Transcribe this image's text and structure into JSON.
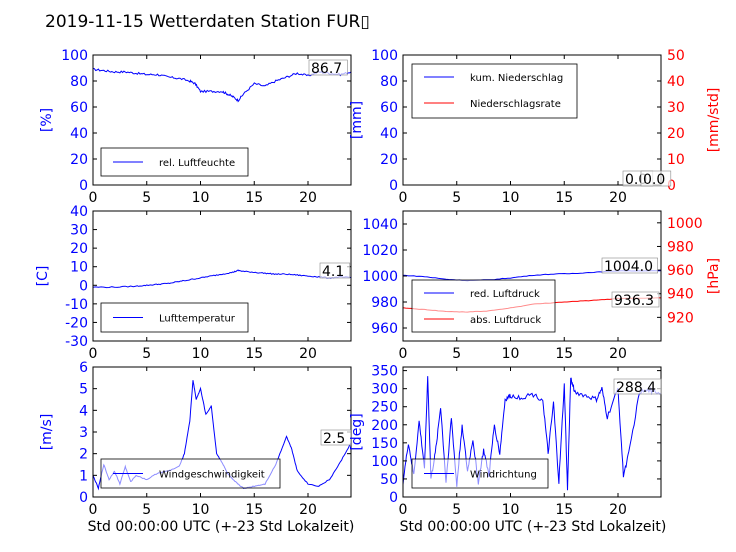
{
  "title": "2019-11-15 Wetterdaten Station FUR▯",
  "colors": {
    "left_axis": "#0000ff",
    "right_axis": "#ff0000",
    "series1": "#0000ff",
    "series2": "#ff0000"
  },
  "chart_data": [
    {
      "id": "humidity",
      "type": "line",
      "ylabel": "[%]",
      "xlim": [
        0,
        24
      ],
      "ylim": [
        0,
        100
      ],
      "xticks": [
        0,
        5,
        10,
        15,
        20
      ],
      "yticks": [
        0,
        20,
        40,
        60,
        80,
        100
      ],
      "grid": false,
      "legend": "lower-left",
      "series": [
        {
          "name": "rel. Luftfeuchte",
          "axis": "left",
          "x": [
            0,
            1,
            2,
            3,
            4,
            5,
            6,
            7,
            8,
            9,
            9.5,
            10,
            11,
            12,
            12.5,
            13,
            13.5,
            14,
            15,
            16,
            17,
            18,
            19,
            20,
            21,
            22,
            23,
            24
          ],
          "y": [
            89,
            88,
            87,
            87,
            86,
            85,
            85,
            83,
            82,
            80,
            78,
            72,
            72,
            72,
            70,
            68,
            65,
            70,
            78,
            76,
            80,
            83,
            86,
            84,
            87,
            86,
            85,
            87
          ]
        }
      ],
      "annotations": [
        "86.7"
      ]
    },
    {
      "id": "precip",
      "type": "line",
      "ylabel": "[mm]",
      "ylabel_right": "[mm/std]",
      "xlim": [
        0,
        24
      ],
      "ylim": [
        0,
        100
      ],
      "ylim_right": [
        0,
        50
      ],
      "xticks": [
        0,
        5,
        10,
        15,
        20
      ],
      "yticks": [
        0,
        20,
        40,
        60,
        80,
        100
      ],
      "yticks_right": [
        0,
        10,
        20,
        30,
        40,
        50
      ],
      "grid": false,
      "legend": "upper-left",
      "series": [
        {
          "name": "kum. Niederschlag",
          "axis": "left",
          "x": [
            0,
            24
          ],
          "y": [
            0,
            0
          ]
        },
        {
          "name": "Niederschlagsrate",
          "axis": "right",
          "x": [
            0,
            24
          ],
          "y": [
            0,
            0
          ]
        }
      ],
      "annotations": [
        "0.0",
        "0.0"
      ]
    },
    {
      "id": "temperature",
      "type": "line",
      "ylabel": "[C]",
      "xlim": [
        0,
        24
      ],
      "ylim": [
        -30,
        40
      ],
      "xticks": [
        0,
        5,
        10,
        15,
        20
      ],
      "yticks": [
        -30,
        -20,
        -10,
        0,
        10,
        20,
        30,
        40
      ],
      "grid": false,
      "legend": "lower-left",
      "series": [
        {
          "name": "Lufttemperatur",
          "axis": "left",
          "x": [
            0,
            2,
            4,
            5,
            6,
            7,
            8,
            9,
            10,
            11,
            12,
            13,
            13.5,
            14,
            15,
            16,
            17,
            18,
            19,
            20,
            21,
            22,
            23,
            24
          ],
          "y": [
            -1,
            -1,
            -0.5,
            0,
            0.5,
            1,
            2,
            3,
            4,
            5,
            6,
            7,
            8,
            7.5,
            7,
            6.5,
            6,
            6,
            5.5,
            5,
            4.5,
            4,
            4.5,
            4.1
          ]
        }
      ],
      "annotations": [
        "4.1"
      ]
    },
    {
      "id": "pressure",
      "type": "line",
      "ylabel": "",
      "ylabel_right": "[hPa]",
      "xlim": [
        0,
        24
      ],
      "ylim": [
        950,
        1050
      ],
      "ylim_right": [
        900,
        1010
      ],
      "xticks": [
        0,
        5,
        10,
        15,
        20
      ],
      "yticks": [
        960,
        980,
        1000,
        1020,
        1040
      ],
      "yticks_right": [
        920,
        940,
        960,
        980,
        1000
      ],
      "grid": false,
      "legend": "lower-left",
      "series": [
        {
          "name": "red. Luftdruck",
          "axis": "left",
          "x": [
            0,
            2,
            4,
            6,
            8,
            10,
            12,
            14,
            16,
            18,
            20,
            22,
            24
          ],
          "y": [
            1000.5,
            999.5,
            997.5,
            996.5,
            997,
            998.5,
            1000.5,
            1001.5,
            1002,
            1003,
            1004,
            1004,
            1004
          ]
        },
        {
          "name": "abs. Luftdruck",
          "axis": "right",
          "x": [
            0,
            2,
            4,
            6,
            8,
            10,
            12,
            14,
            16,
            18,
            20,
            22,
            24
          ],
          "y": [
            928,
            926.5,
            925,
            924.5,
            925.5,
            928,
            931,
            932.5,
            933.5,
            934.5,
            936,
            936.3,
            936.5
          ]
        }
      ],
      "annotations": [
        "1004.0",
        "936.3"
      ]
    },
    {
      "id": "windspeed",
      "type": "line",
      "ylabel": "[m/s]",
      "xlim": [
        0,
        24
      ],
      "ylim": [
        0,
        6
      ],
      "xticks": [
        0,
        5,
        10,
        15,
        20
      ],
      "yticks": [
        0,
        1,
        2,
        3,
        4,
        5,
        6
      ],
      "grid": false,
      "legend": "lower-center",
      "series": [
        {
          "name": "Windgeschwindigkeit",
          "axis": "left",
          "x": [
            0,
            0.5,
            1,
            1.5,
            2,
            2.5,
            3,
            3.5,
            4,
            5,
            6,
            7,
            8,
            8.5,
            9,
            9.3,
            9.6,
            10,
            10.5,
            11,
            11.5,
            12,
            12.5,
            13,
            13.5,
            14,
            15,
            16,
            17,
            18,
            18.5,
            19,
            20,
            21,
            22,
            23,
            24
          ],
          "y": [
            1.0,
            0.4,
            1.5,
            0.8,
            1.2,
            0.6,
            1.4,
            0.7,
            1.0,
            0.8,
            1.1,
            1.2,
            1.4,
            2.0,
            3.5,
            5.4,
            4.5,
            5.0,
            3.8,
            4.2,
            2.0,
            1.6,
            1.1,
            0.8,
            0.6,
            0.4,
            0.5,
            0.6,
            1.5,
            2.8,
            2.2,
            1.2,
            0.6,
            0.5,
            0.8,
            1.6,
            2.5
          ]
        }
      ],
      "annotations": [
        "2.5"
      ]
    },
    {
      "id": "winddir",
      "type": "line",
      "ylabel": "[deg]",
      "xlim": [
        0,
        24
      ],
      "ylim": [
        0,
        360
      ],
      "xticks": [
        0,
        5,
        10,
        15,
        20
      ],
      "yticks": [
        0,
        50,
        100,
        150,
        200,
        250,
        300,
        350
      ],
      "grid": false,
      "legend": "lower-left",
      "series": [
        {
          "name": "Windrichtung",
          "axis": "left",
          "x": [
            0,
            0.5,
            1,
            1.5,
            2,
            2.3,
            2.6,
            3,
            3.5,
            4,
            4.5,
            5,
            5.5,
            6,
            6.5,
            7,
            7.5,
            8,
            8.5,
            9,
            9.5,
            10,
            11,
            12,
            13,
            13.5,
            14,
            14.5,
            15,
            15.3,
            15.6,
            16,
            17,
            18,
            18.5,
            19,
            20,
            20.5,
            21,
            22,
            23,
            24
          ],
          "y": [
            40,
            150,
            60,
            210,
            80,
            335,
            50,
            120,
            250,
            40,
            220,
            30,
            200,
            70,
            160,
            40,
            130,
            60,
            200,
            120,
            270,
            280,
            275,
            285,
            270,
            120,
            260,
            40,
            310,
            20,
            330,
            290,
            280,
            270,
            300,
            220,
            300,
            60,
            120,
            290,
            295,
            288
          ]
        }
      ],
      "annotations": [
        "288.4"
      ]
    }
  ],
  "xlabels": [
    "Std 00:00:00 UTC (+-23 Std Lokalzeit)",
    "Std 00:00:00 UTC (+-23 Std Lokalzeit)"
  ]
}
